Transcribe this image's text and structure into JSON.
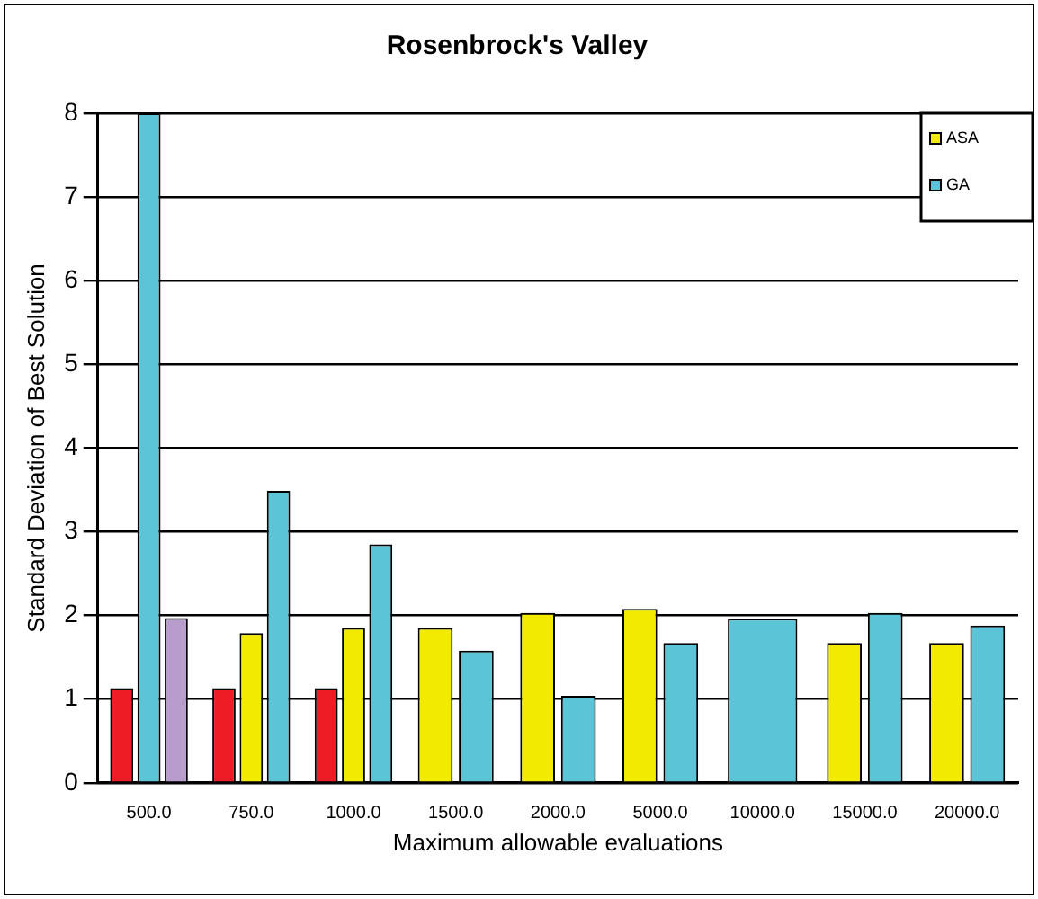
{
  "chart_data": {
    "type": "bar",
    "title": "Rosenbrock's Valley",
    "xlabel": "Maximum allowable evaluations",
    "ylabel": "Standard Deviation of Best Solution",
    "categories": [
      "500.0",
      "750.0",
      "1000.0",
      "1500.0",
      "2000.0",
      "5000.0",
      "10000.0",
      "15000.0",
      "20000.0"
    ],
    "series": [
      {
        "color": "#ee1c24",
        "values": [
          1.13,
          1.13,
          1.13,
          null,
          null,
          null,
          null,
          null,
          null
        ]
      },
      {
        "name": "ASA",
        "color": "#f2ea00",
        "values": [
          null,
          1.79,
          1.85,
          1.85,
          2.03,
          2.08,
          null,
          1.67,
          1.67
        ]
      },
      {
        "name": "GA",
        "color": "#5bc4d6",
        "values": [
          8,
          3.49,
          2.85,
          1.58,
          1.04,
          1.67,
          1.96,
          2.03,
          1.88
        ]
      },
      {
        "color": "#b79ccc",
        "values": [
          1.97,
          null,
          null,
          null,
          null,
          null,
          null,
          null,
          null
        ]
      }
    ],
    "ylim": [
      0,
      8
    ],
    "yticks": [
      0,
      1,
      2,
      3,
      4,
      5,
      6,
      7,
      8
    ],
    "grid": "y",
    "legend": "top right"
  }
}
